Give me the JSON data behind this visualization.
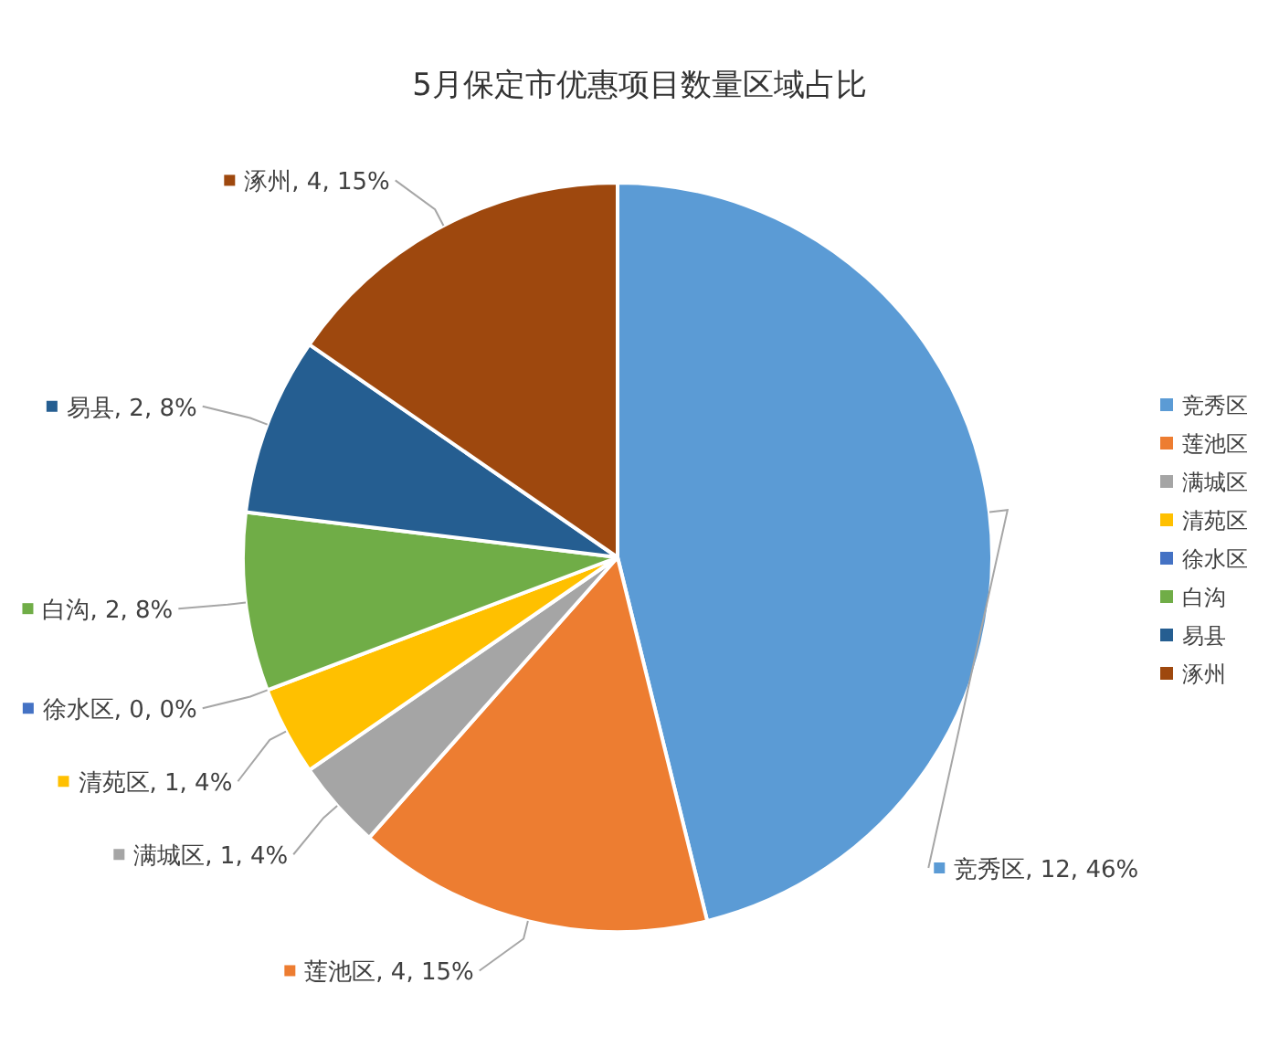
{
  "chart_data": {
    "type": "pie",
    "title": "5月保定市优惠项目数量区域占比",
    "categories": [
      "竞秀区",
      "莲池区",
      "满城区",
      "清苑区",
      "徐水区",
      "白沟",
      "易县",
      "涿州"
    ],
    "values": [
      12,
      4,
      1,
      1,
      0,
      2,
      2,
      4
    ],
    "colors": [
      "#5b9bd5",
      "#ed7d31",
      "#a5a5a5",
      "#ffc000",
      "#4472c4",
      "#70ad47",
      "#255e91",
      "#9e480e"
    ],
    "value_labels": [
      "竞秀区, 12, 46%",
      "莲池区, 4, 15%",
      "满城区, 1, 4%",
      "清苑区, 1, 4%",
      "徐水区, 0, 0%",
      "白沟, 2, 8%",
      "易县, 2, 8%",
      "涿州, 4, 15%"
    ],
    "legend": "right"
  }
}
